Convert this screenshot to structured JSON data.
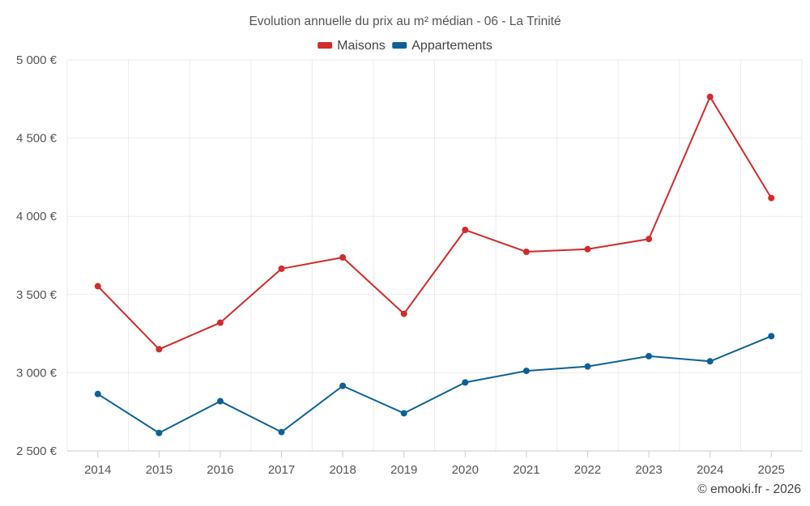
{
  "chart_data": {
    "type": "line",
    "title": "Evolution annuelle du prix au m² médian - 06 - La Trinité",
    "categories": [
      "2014",
      "2015",
      "2016",
      "2017",
      "2018",
      "2019",
      "2020",
      "2021",
      "2022",
      "2023",
      "2024",
      "2025"
    ],
    "series": [
      {
        "name": "Maisons",
        "color": "#d32a2a",
        "values": [
          3553,
          3150,
          3320,
          3665,
          3737,
          3377,
          3913,
          3773,
          3790,
          3855,
          4764,
          4117
        ]
      },
      {
        "name": "Appartements",
        "color": "#0d6196",
        "values": [
          2864,
          2615,
          2818,
          2621,
          2916,
          2741,
          2938,
          3012,
          3040,
          3106,
          3073,
          3234
        ]
      }
    ],
    "ylim": [
      2500,
      5000
    ],
    "yticks": [
      {
        "value": 2500,
        "label": "2 500 €"
      },
      {
        "value": 3000,
        "label": "3 000 €"
      },
      {
        "value": 3500,
        "label": "3 500 €"
      },
      {
        "value": 4000,
        "label": "4 000 €"
      },
      {
        "value": 4500,
        "label": "4 500 €"
      },
      {
        "value": 5000,
        "label": "5 000 €"
      }
    ],
    "xlabel": "",
    "ylabel": "",
    "grid": true,
    "legend": "top-center"
  },
  "credit": "© emooki.fr - 2026"
}
